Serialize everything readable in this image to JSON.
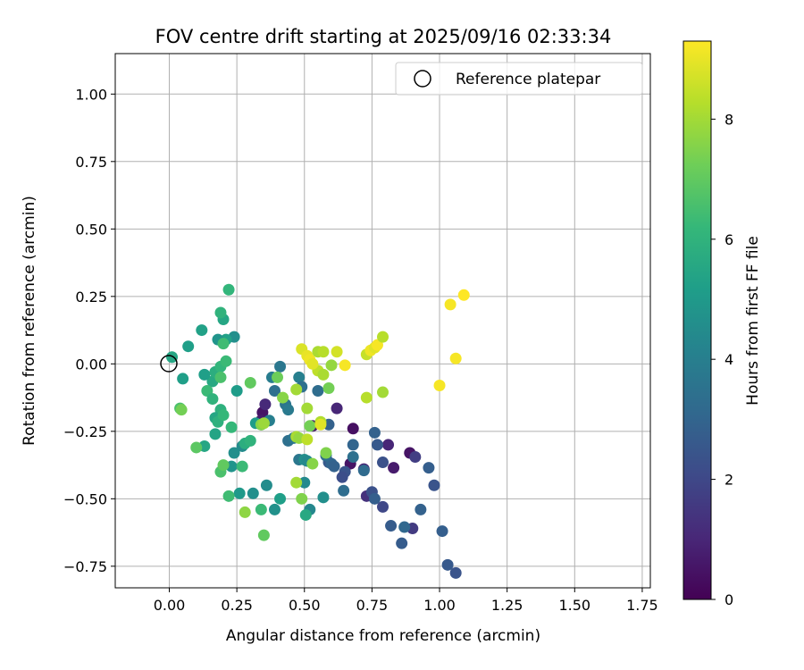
{
  "chart_data": {
    "type": "scatter",
    "title": "FOV centre drift starting at 2025/09/16 02:33:34",
    "xlabel": "Angular distance from reference (arcmin)",
    "ylabel": "Rotation from reference (arcmin)",
    "xlim": [
      -0.2,
      1.78
    ],
    "ylim": [
      -0.83,
      1.15
    ],
    "xticks": [
      0.0,
      0.25,
      0.5,
      0.75,
      1.0,
      1.25,
      1.5,
      1.75
    ],
    "xtick_labels": [
      "0.00",
      "0.25",
      "0.50",
      "0.75",
      "1.00",
      "1.25",
      "1.50",
      "1.75"
    ],
    "yticks": [
      -0.75,
      -0.5,
      -0.25,
      0.0,
      0.25,
      0.5,
      0.75,
      1.0
    ],
    "ytick_labels": [
      "−0.75",
      "−0.50",
      "−0.25",
      "0.00",
      "0.25",
      "0.50",
      "0.75",
      "1.00"
    ],
    "grid": true,
    "legend": {
      "placement": "top-right",
      "entries": [
        "Reference platepar"
      ]
    },
    "reference_point": {
      "x": 0.0,
      "y": 0.0,
      "label": "Reference platepar"
    },
    "colorbar": {
      "label": "Hours from first FF file",
      "colormap": "viridis",
      "range": [
        0,
        9.3
      ],
      "ticks": [
        0,
        2,
        4,
        6,
        8
      ],
      "tick_labels": [
        "0",
        "2",
        "4",
        "6",
        "8"
      ]
    },
    "points": [
      {
        "x": 0.345,
        "y": -0.18,
        "c": 0.5
      },
      {
        "x": 0.34,
        "y": -0.21,
        "c": 0.7
      },
      {
        "x": 0.355,
        "y": -0.15,
        "c": 1.1
      },
      {
        "x": 0.53,
        "y": -0.23,
        "c": 0.6
      },
      {
        "x": 0.62,
        "y": -0.165,
        "c": 1.0
      },
      {
        "x": 0.68,
        "y": -0.24,
        "c": 0.4
      },
      {
        "x": 0.67,
        "y": -0.37,
        "c": 0.5
      },
      {
        "x": 0.72,
        "y": -0.39,
        "c": 0.9
      },
      {
        "x": 0.73,
        "y": -0.49,
        "c": 1.3
      },
      {
        "x": 0.81,
        "y": -0.3,
        "c": 1.0
      },
      {
        "x": 0.83,
        "y": -0.385,
        "c": 0.7
      },
      {
        "x": 0.89,
        "y": -0.33,
        "c": 0.5
      },
      {
        "x": 0.91,
        "y": -0.345,
        "c": 1.7
      },
      {
        "x": 0.9,
        "y": -0.61,
        "c": 1.6
      },
      {
        "x": 0.72,
        "y": -0.395,
        "c": 3.2
      },
      {
        "x": 0.65,
        "y": -0.4,
        "c": 2.4
      },
      {
        "x": 0.64,
        "y": -0.42,
        "c": 2.2
      },
      {
        "x": 0.59,
        "y": -0.365,
        "c": 2.6
      },
      {
        "x": 0.6,
        "y": -0.37,
        "c": 3.0
      },
      {
        "x": 0.61,
        "y": -0.38,
        "c": 2.9
      },
      {
        "x": 0.58,
        "y": -0.34,
        "c": 3.3
      },
      {
        "x": 0.75,
        "y": -0.475,
        "c": 2.3
      },
      {
        "x": 0.76,
        "y": -0.5,
        "c": 2.8
      },
      {
        "x": 0.79,
        "y": -0.53,
        "c": 2.0
      },
      {
        "x": 0.77,
        "y": -0.3,
        "c": 2.6
      },
      {
        "x": 0.79,
        "y": -0.365,
        "c": 2.3
      },
      {
        "x": 0.76,
        "y": -0.255,
        "c": 2.9
      },
      {
        "x": 0.68,
        "y": -0.3,
        "c": 3.0
      },
      {
        "x": 0.68,
        "y": -0.345,
        "c": 3.4
      },
      {
        "x": 0.82,
        "y": -0.6,
        "c": 2.7
      },
      {
        "x": 0.86,
        "y": -0.665,
        "c": 2.7
      },
      {
        "x": 0.87,
        "y": -0.605,
        "c": 3.1
      },
      {
        "x": 0.93,
        "y": -0.54,
        "c": 2.9
      },
      {
        "x": 0.96,
        "y": -0.385,
        "c": 2.8
      },
      {
        "x": 0.98,
        "y": -0.45,
        "c": 2.4
      },
      {
        "x": 1.01,
        "y": -0.62,
        "c": 2.8
      },
      {
        "x": 1.03,
        "y": -0.745,
        "c": 2.6
      },
      {
        "x": 1.06,
        "y": -0.775,
        "c": 2.4
      },
      {
        "x": 0.645,
        "y": -0.47,
        "c": 3.3
      },
      {
        "x": 0.56,
        "y": -0.22,
        "c": 2.7
      },
      {
        "x": 0.59,
        "y": -0.225,
        "c": 2.9
      },
      {
        "x": 0.55,
        "y": -0.1,
        "c": 3.3
      },
      {
        "x": 0.48,
        "y": -0.05,
        "c": 4.0
      },
      {
        "x": 0.49,
        "y": -0.085,
        "c": 3.4
      },
      {
        "x": 0.48,
        "y": -0.355,
        "c": 3.7
      },
      {
        "x": 0.5,
        "y": -0.355,
        "c": 4.6
      },
      {
        "x": 0.51,
        "y": -0.36,
        "c": 4.4
      },
      {
        "x": 0.52,
        "y": -0.54,
        "c": 4.3
      },
      {
        "x": 0.5,
        "y": -0.44,
        "c": 4.4
      },
      {
        "x": 0.57,
        "y": -0.495,
        "c": 4.6
      },
      {
        "x": 0.505,
        "y": -0.56,
        "c": 5.6
      },
      {
        "x": 0.44,
        "y": -0.285,
        "c": 3.4
      },
      {
        "x": 0.46,
        "y": -0.275,
        "c": 3.7
      },
      {
        "x": 0.43,
        "y": -0.15,
        "c": 3.6
      },
      {
        "x": 0.44,
        "y": -0.17,
        "c": 3.8
      },
      {
        "x": 0.39,
        "y": -0.1,
        "c": 3.4
      },
      {
        "x": 0.41,
        "y": -0.01,
        "c": 3.7
      },
      {
        "x": 0.38,
        "y": -0.05,
        "c": 3.9
      },
      {
        "x": 0.37,
        "y": -0.21,
        "c": 4.0
      },
      {
        "x": 0.34,
        "y": -0.225,
        "c": 4.3
      },
      {
        "x": 0.32,
        "y": -0.22,
        "c": 5.1
      },
      {
        "x": 0.39,
        "y": -0.54,
        "c": 4.7
      },
      {
        "x": 0.41,
        "y": -0.5,
        "c": 5.2
      },
      {
        "x": 0.36,
        "y": -0.45,
        "c": 4.5
      },
      {
        "x": 0.31,
        "y": -0.48,
        "c": 4.6
      },
      {
        "x": 0.26,
        "y": -0.48,
        "c": 5.0
      },
      {
        "x": 0.24,
        "y": -0.33,
        "c": 4.6
      },
      {
        "x": 0.23,
        "y": -0.38,
        "c": 4.8
      },
      {
        "x": 0.27,
        "y": -0.305,
        "c": 4.5
      },
      {
        "x": 0.25,
        "y": -0.1,
        "c": 5.1
      },
      {
        "x": 0.24,
        "y": 0.1,
        "c": 4.6
      },
      {
        "x": 0.21,
        "y": 0.09,
        "c": 5.3
      },
      {
        "x": 0.18,
        "y": 0.09,
        "c": 4.8
      },
      {
        "x": 0.16,
        "y": -0.065,
        "c": 5.6
      },
      {
        "x": 0.13,
        "y": -0.04,
        "c": 5.2
      },
      {
        "x": 0.12,
        "y": 0.125,
        "c": 5.3
      },
      {
        "x": 0.07,
        "y": 0.065,
        "c": 5.2
      },
      {
        "x": 0.05,
        "y": -0.055,
        "c": 5.2
      },
      {
        "x": 0.01,
        "y": 0.025,
        "c": 5.5
      },
      {
        "x": 0.17,
        "y": -0.03,
        "c": 5.8
      },
      {
        "x": 0.19,
        "y": -0.01,
        "c": 6.1
      },
      {
        "x": 0.14,
        "y": -0.1,
        "c": 6.3
      },
      {
        "x": 0.16,
        "y": -0.13,
        "c": 6.0
      },
      {
        "x": 0.19,
        "y": -0.05,
        "c": 6.6
      },
      {
        "x": 0.2,
        "y": 0.165,
        "c": 5.5
      },
      {
        "x": 0.19,
        "y": 0.19,
        "c": 6.0
      },
      {
        "x": 0.22,
        "y": 0.275,
        "c": 6.1
      },
      {
        "x": 0.2,
        "y": 0.075,
        "c": 6.4
      },
      {
        "x": 0.21,
        "y": 0.01,
        "c": 6.3
      },
      {
        "x": 0.19,
        "y": -0.17,
        "c": 5.9
      },
      {
        "x": 0.17,
        "y": -0.2,
        "c": 5.5
      },
      {
        "x": 0.18,
        "y": -0.215,
        "c": 5.9
      },
      {
        "x": 0.2,
        "y": -0.19,
        "c": 6.2
      },
      {
        "x": 0.17,
        "y": -0.26,
        "c": 5.4
      },
      {
        "x": 0.13,
        "y": -0.305,
        "c": 5.5
      },
      {
        "x": 0.1,
        "y": -0.31,
        "c": 6.9
      },
      {
        "x": 0.04,
        "y": -0.165,
        "c": 6.6
      },
      {
        "x": 0.045,
        "y": -0.17,
        "c": 7.3
      },
      {
        "x": 0.23,
        "y": -0.235,
        "c": 6.2
      },
      {
        "x": 0.28,
        "y": -0.295,
        "c": 5.8
      },
      {
        "x": 0.3,
        "y": -0.285,
        "c": 6.0
      },
      {
        "x": 0.27,
        "y": -0.38,
        "c": 6.3
      },
      {
        "x": 0.19,
        "y": -0.4,
        "c": 6.6
      },
      {
        "x": 0.2,
        "y": -0.375,
        "c": 7.0
      },
      {
        "x": 0.22,
        "y": -0.49,
        "c": 6.4
      },
      {
        "x": 0.3,
        "y": -0.07,
        "c": 7.0
      },
      {
        "x": 0.28,
        "y": -0.55,
        "c": 7.7
      },
      {
        "x": 0.34,
        "y": -0.54,
        "c": 6.3
      },
      {
        "x": 0.35,
        "y": -0.635,
        "c": 7.0
      },
      {
        "x": 0.34,
        "y": -0.225,
        "c": 7.6
      },
      {
        "x": 0.35,
        "y": -0.22,
        "c": 7.9
      },
      {
        "x": 0.4,
        "y": -0.05,
        "c": 7.2
      },
      {
        "x": 0.42,
        "y": -0.125,
        "c": 7.6
      },
      {
        "x": 0.47,
        "y": -0.095,
        "c": 8.0
      },
      {
        "x": 0.47,
        "y": -0.27,
        "c": 8.1
      },
      {
        "x": 0.48,
        "y": -0.275,
        "c": 7.8
      },
      {
        "x": 0.51,
        "y": -0.28,
        "c": 8.4
      },
      {
        "x": 0.51,
        "y": -0.165,
        "c": 8.0
      },
      {
        "x": 0.52,
        "y": -0.23,
        "c": 7.3
      },
      {
        "x": 0.47,
        "y": -0.44,
        "c": 8.0
      },
      {
        "x": 0.49,
        "y": -0.5,
        "c": 7.5
      },
      {
        "x": 0.53,
        "y": -0.37,
        "c": 7.6
      },
      {
        "x": 0.56,
        "y": -0.215,
        "c": 8.2
      },
      {
        "x": 0.56,
        "y": -0.225,
        "c": 8.9
      },
      {
        "x": 0.58,
        "y": -0.33,
        "c": 7.5
      },
      {
        "x": 0.59,
        "y": -0.09,
        "c": 7.3
      },
      {
        "x": 0.6,
        "y": -0.005,
        "c": 7.8
      },
      {
        "x": 0.55,
        "y": -0.025,
        "c": 8.4
      },
      {
        "x": 0.57,
        "y": -0.04,
        "c": 8.1
      },
      {
        "x": 0.55,
        "y": 0.045,
        "c": 8.1
      },
      {
        "x": 0.57,
        "y": 0.045,
        "c": 8.3
      },
      {
        "x": 0.62,
        "y": 0.045,
        "c": 8.7
      },
      {
        "x": 0.49,
        "y": 0.055,
        "c": 8.8
      },
      {
        "x": 0.51,
        "y": 0.03,
        "c": 9.0
      },
      {
        "x": 0.52,
        "y": 0.015,
        "c": 9.1
      },
      {
        "x": 0.53,
        "y": 0.0,
        "c": 8.9
      },
      {
        "x": 0.65,
        "y": -0.005,
        "c": 9.2
      },
      {
        "x": 0.73,
        "y": 0.035,
        "c": 8.5
      },
      {
        "x": 0.745,
        "y": 0.05,
        "c": 9.1
      },
      {
        "x": 0.76,
        "y": 0.06,
        "c": 8.9
      },
      {
        "x": 0.77,
        "y": 0.07,
        "c": 9.2
      },
      {
        "x": 0.79,
        "y": 0.1,
        "c": 8.3
      },
      {
        "x": 0.73,
        "y": -0.125,
        "c": 8.3
      },
      {
        "x": 0.79,
        "y": -0.105,
        "c": 8.0
      },
      {
        "x": 1.04,
        "y": 0.22,
        "c": 9.2
      },
      {
        "x": 1.09,
        "y": 0.255,
        "c": 9.3
      },
      {
        "x": 1.06,
        "y": 0.02,
        "c": 9.2
      },
      {
        "x": 1.0,
        "y": -0.08,
        "c": 9.2
      }
    ]
  }
}
